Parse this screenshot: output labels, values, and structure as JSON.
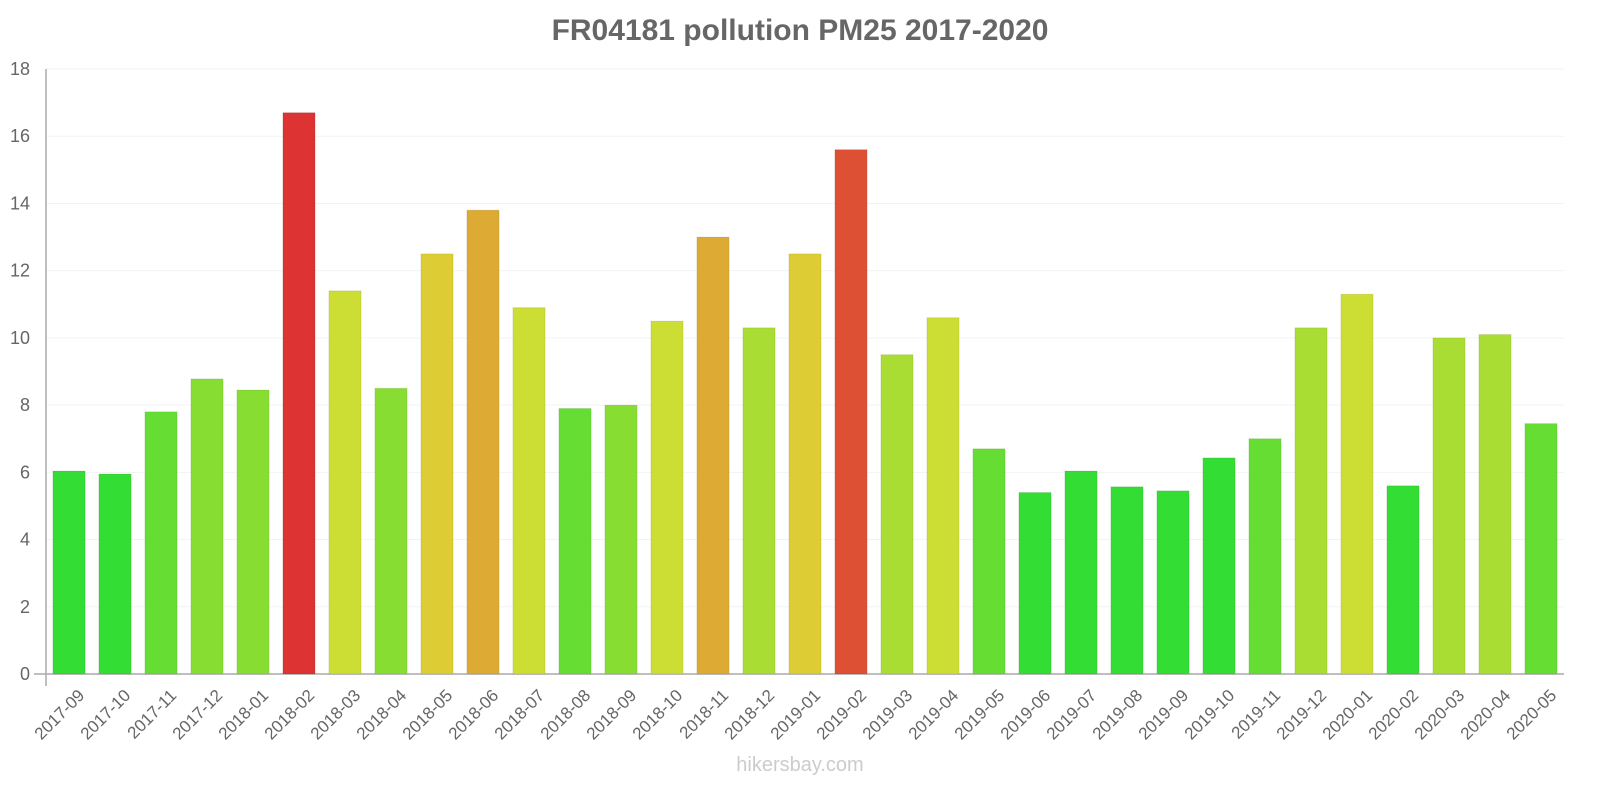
{
  "title": "FR04181 pollution PM25 2017-2020",
  "footer": "hikersbay.com",
  "chart_data": {
    "type": "bar",
    "title": "FR04181 pollution PM25 2017-2020",
    "xlabel": "",
    "ylabel": "",
    "ylim": [
      0,
      18
    ],
    "yticks": [
      0,
      2,
      4,
      6,
      8,
      10,
      12,
      14,
      16,
      18
    ],
    "grid": true,
    "legend": null,
    "categories": [
      "2017-09",
      "2017-10",
      "2017-11",
      "2017-12",
      "2018-01",
      "2018-02",
      "2018-03",
      "2018-04",
      "2018-05",
      "2018-06",
      "2018-07",
      "2018-08",
      "2018-09",
      "2018-10",
      "2018-11",
      "2018-12",
      "2019-01",
      "2019-02",
      "2019-03",
      "2019-04",
      "2019-05",
      "2019-06",
      "2019-07",
      "2019-08",
      "2019-09",
      "2019-10",
      "2019-11",
      "2019-12",
      "2020-01",
      "2020-02",
      "2020-03",
      "2020-04",
      "2020-05"
    ],
    "values": [
      6.04,
      5.95,
      7.8,
      8.78,
      8.45,
      16.7,
      11.4,
      8.5,
      12.5,
      13.8,
      10.9,
      7.9,
      8.0,
      10.5,
      13.0,
      10.3,
      12.5,
      15.6,
      9.5,
      10.6,
      6.7,
      5.4,
      6.04,
      5.57,
      5.45,
      6.43,
      7.0,
      10.3,
      11.3,
      5.6,
      10.0,
      10.1,
      7.45
    ],
    "colors": [
      "#33dd33",
      "#33dd33",
      "#66dd33",
      "#88dd33",
      "#88dd33",
      "#dd3333",
      "#ccdd33",
      "#88dd33",
      "#ddcc33",
      "#ddaa33",
      "#ccdd33",
      "#66dd33",
      "#88dd33",
      "#ccdd33",
      "#ddaa33",
      "#aadd33",
      "#ddcc33",
      "#dd5033",
      "#aadd33",
      "#ccdd33",
      "#66dd33",
      "#33dd33",
      "#33dd33",
      "#33dd33",
      "#33dd33",
      "#33dd33",
      "#66dd33",
      "#aadd33",
      "#ccdd33",
      "#33dd33",
      "#aadd33",
      "#aadd33",
      "#66dd33"
    ]
  }
}
